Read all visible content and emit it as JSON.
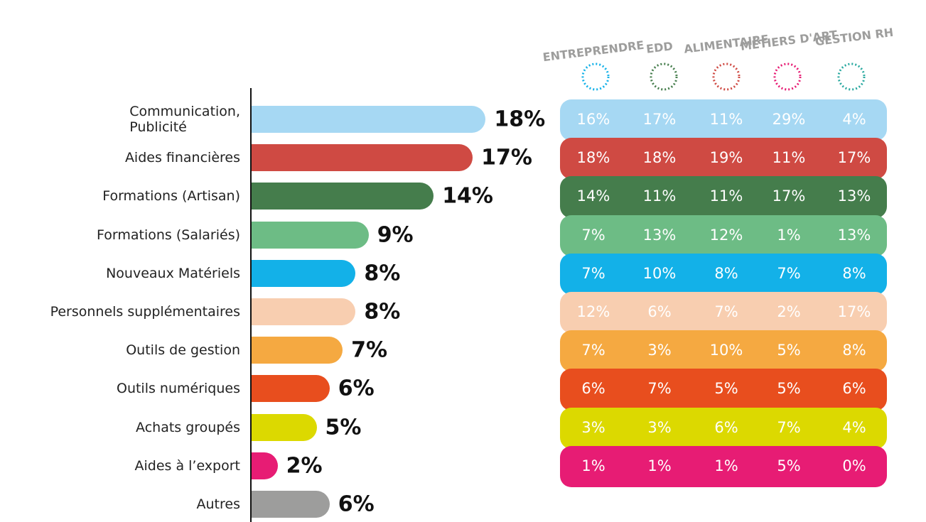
{
  "chart_data": [
    {
      "type": "bar",
      "categories": [
        "Communication,\nPublicité",
        "Aides financières",
        "Formations (Artisan)",
        "Formations (Salariés)",
        "Nouveaux Matériels",
        "Personnels supplémentaires",
        "Outils de gestion",
        "Outils numériques",
        "Achats groupés",
        "Aides à l’export",
        "Autres"
      ],
      "values": [
        18,
        17,
        14,
        9,
        8,
        8,
        7,
        6,
        5,
        2,
        6
      ],
      "value_labels": [
        "18%",
        "17%",
        "14%",
        "9%",
        "8%",
        "8%",
        "7%",
        "6%",
        "5%",
        "2%",
        "6%"
      ],
      "colors": [
        "#a6d8f3",
        "#cf4a43",
        "#457d4c",
        "#6dbc85",
        "#13b1e8",
        "#f8ceb0",
        "#f5a941",
        "#e84e1e",
        "#dcd900",
        "#e71c74",
        "#9d9d9c"
      ]
    },
    {
      "type": "table",
      "columns": [
        "ENTREPRENDRE",
        "EDD",
        "ALIMENTAIRE",
        "MÉTIERS D'ART",
        "GESTION RH"
      ],
      "rows": [
        [
          "16%",
          "17%",
          "11%",
          "29%",
          "4%"
        ],
        [
          "18%",
          "18%",
          "19%",
          "11%",
          "17%"
        ],
        [
          "14%",
          "11%",
          "11%",
          "17%",
          "13%"
        ],
        [
          "7%",
          "13%",
          "12%",
          "1%",
          "13%"
        ],
        [
          "7%",
          "10%",
          "8%",
          "7%",
          "8%"
        ],
        [
          "12%",
          "6%",
          "7%",
          "2%",
          "17%"
        ],
        [
          "7%",
          "3%",
          "10%",
          "5%",
          "8%"
        ],
        [
          "6%",
          "7%",
          "5%",
          "5%",
          "6%"
        ],
        [
          "3%",
          "3%",
          "6%",
          "7%",
          "4%"
        ],
        [
          "1%",
          "1%",
          "1%",
          "5%",
          "0%"
        ]
      ]
    }
  ]
}
